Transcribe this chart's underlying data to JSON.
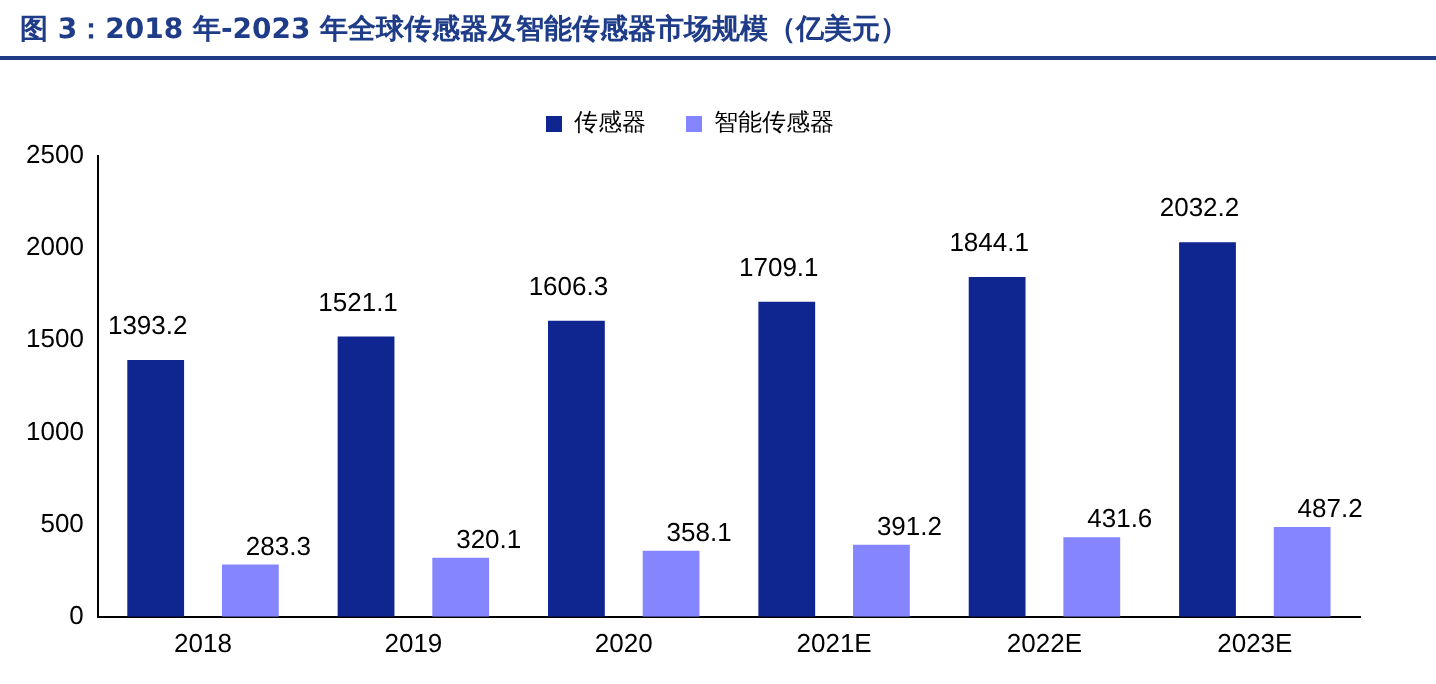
{
  "chart_data": {
    "type": "bar",
    "title": "图 3：2018 年-2023 年全球传感器及智能传感器市场规模（亿美元）",
    "categories": [
      "2018",
      "2019",
      "2020",
      "2021E",
      "2022E",
      "2023E"
    ],
    "series": [
      {
        "name": "传感器",
        "color": "#0f2590",
        "values": [
          1393.2,
          1521.1,
          1606.3,
          1709.1,
          1844.1,
          2032.2
        ]
      },
      {
        "name": "智能传感器",
        "color": "#8585ff",
        "values": [
          283.3,
          320.1,
          358.1,
          391.2,
          431.6,
          487.2
        ]
      }
    ],
    "ylim": [
      0,
      2500
    ],
    "yticks": [
      0,
      500,
      1000,
      1500,
      2000,
      2500
    ],
    "grid": false,
    "legend": "top",
    "data_labels": true
  }
}
